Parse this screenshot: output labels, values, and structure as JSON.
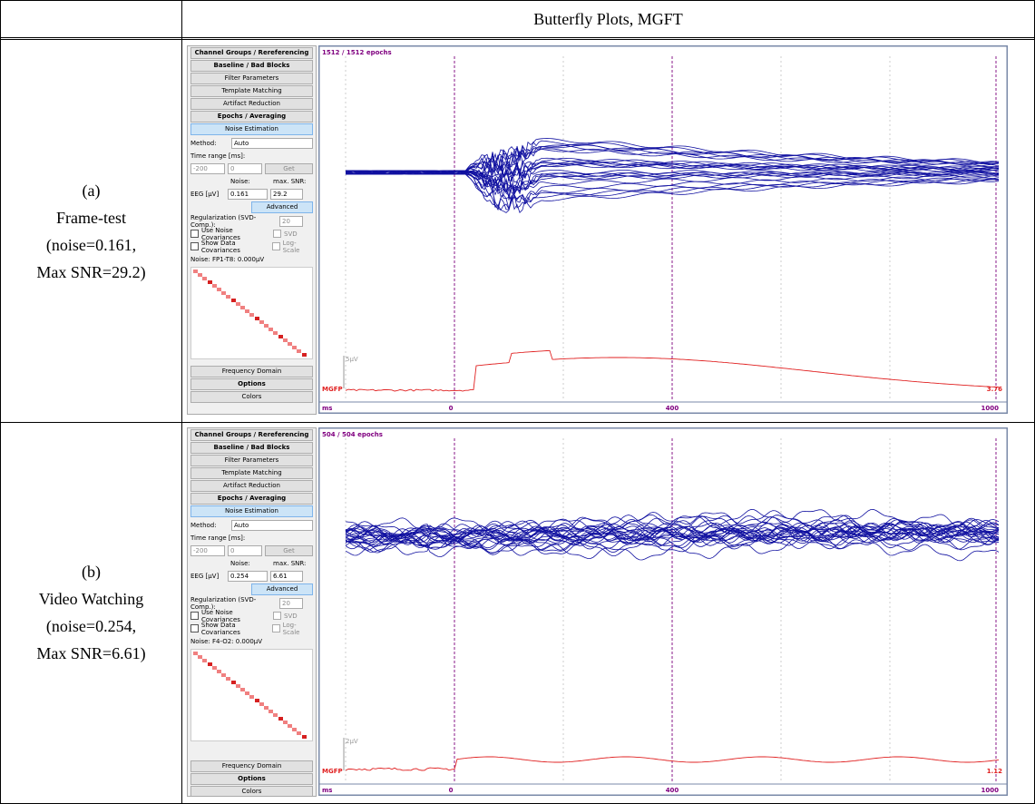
{
  "header": {
    "title": "Butterfly Plots, MGFT"
  },
  "rows": [
    {
      "label": [
        "(a)",
        "Frame-test",
        "(noise=0.161,",
        "Max SNR=29.2)"
      ],
      "panel": {
        "buttons_top": [
          "Channel Groups / Rereferencing",
          "Baseline / Bad Blocks",
          "Filter Parameters",
          "Template Matching",
          "Artifact Reduction",
          "Epochs / Averaging",
          "Noise Estimation"
        ],
        "method_label": "Method:",
        "method_value": "Auto",
        "time_range_label": "Time range [ms]:",
        "time_from": "-200",
        "time_to": "0",
        "get": "Get",
        "noise_label": "Noise:",
        "snr_label": "max. SNR:",
        "eeg_label": "EEG [µV]",
        "noise": "0.161",
        "snr": "29.2",
        "advanced": "Advanced",
        "regularization": "Regularization (SVD-Comp.):",
        "svd_comp": "20",
        "checks": [
          "Use Noise Covariances",
          "Show Data Covariances"
        ],
        "checks_right": [
          "SVD",
          "Log-Scale"
        ],
        "noise_channel": "Noise: FP1-T8: 0.000µV",
        "buttons_bottom": [
          "Frequency Domain",
          "Options",
          "Colors"
        ]
      },
      "plot": {
        "epochs": "1512 / 1512 epochs",
        "scale": "5µV",
        "mgfp": "MGFP",
        "mgfp_value": "3.76",
        "unit": "ms",
        "ticks": [
          "0",
          "400",
          "1000"
        ]
      }
    },
    {
      "label": [
        "(b)",
        "Video Watching",
        "(noise=0.254,",
        "Max SNR=6.61)"
      ],
      "panel": {
        "buttons_top": [
          "Channel Groups / Rereferencing",
          "Baseline / Bad Blocks",
          "Filter Parameters",
          "Template Matching",
          "Artifact Reduction",
          "Epochs / Averaging",
          "Noise Estimation"
        ],
        "method_label": "Method:",
        "method_value": "Auto",
        "time_range_label": "Time range [ms]:",
        "time_from": "-200",
        "time_to": "0",
        "get": "Get",
        "noise_label": "Noise:",
        "snr_label": "max. SNR:",
        "eeg_label": "EEG [µV]",
        "noise": "0.254",
        "snr": "6.61",
        "advanced": "Advanced",
        "regularization": "Regularization (SVD-Comp.):",
        "svd_comp": "20",
        "checks": [
          "Use Noise Covariances",
          "Show Data Covariances"
        ],
        "checks_right": [
          "SVD",
          "Log-Scale"
        ],
        "noise_channel": "Noise: F4-O2: 0.000µV",
        "buttons_bottom": [
          "Frequency Domain",
          "Options",
          "Colors"
        ]
      },
      "plot": {
        "epochs": "504 / 504 epochs",
        "scale": "2µV",
        "mgfp": "MGFP",
        "mgfp_value": "1.12",
        "unit": "ms",
        "ticks": [
          "0",
          "400",
          "1000"
        ]
      }
    }
  ]
}
